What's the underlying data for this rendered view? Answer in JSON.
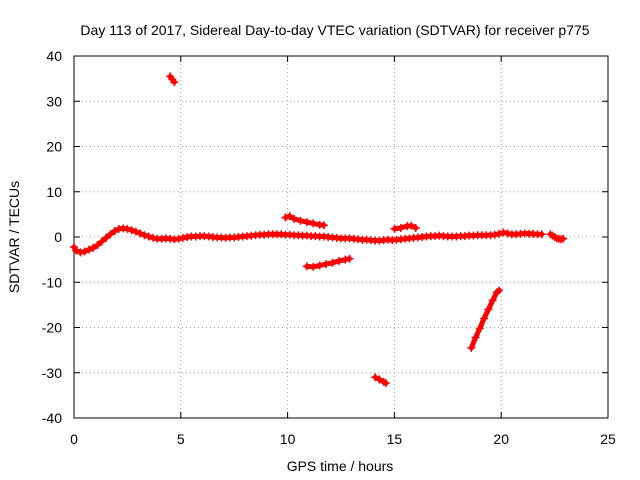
{
  "chart_data": {
    "type": "scatter",
    "title": "Day 113 of 2017, Sidereal Day-to-day VTEC variation (SDTVAR) for receiver p775",
    "xlabel": "GPS time / hours",
    "ylabel": "SDTVAR / TECUs",
    "xlim": [
      0,
      25
    ],
    "ylim": [
      -40,
      40
    ],
    "xticks": [
      0,
      5,
      10,
      15,
      20,
      25
    ],
    "yticks": [
      -40,
      -30,
      -20,
      -10,
      0,
      10,
      20,
      30,
      40
    ],
    "grid": true,
    "legend": "none",
    "series": [
      {
        "name": "SDTVAR",
        "color": "#ff0000",
        "marker": "plus",
        "segments": [
          [
            [
              0.0,
              -2.2
            ],
            [
              0.1,
              -3.0
            ],
            [
              0.3,
              -3.4
            ],
            [
              0.5,
              -3.2
            ],
            [
              0.7,
              -2.8
            ],
            [
              0.9,
              -2.4
            ],
            [
              1.1,
              -1.8
            ],
            [
              1.3,
              -1.0
            ],
            [
              1.5,
              -0.2
            ],
            [
              1.7,
              0.6
            ],
            [
              1.9,
              1.3
            ],
            [
              2.1,
              1.8
            ],
            [
              2.3,
              1.9
            ],
            [
              2.5,
              1.8
            ],
            [
              2.7,
              1.5
            ],
            [
              2.9,
              1.2
            ],
            [
              3.1,
              0.8
            ],
            [
              3.3,
              0.4
            ],
            [
              3.5,
              0.1
            ],
            [
              3.7,
              -0.2
            ],
            [
              3.9,
              -0.4
            ],
            [
              4.1,
              -0.4
            ],
            [
              4.3,
              -0.3
            ],
            [
              4.5,
              -0.4
            ],
            [
              4.7,
              -0.5
            ],
            [
              4.9,
              -0.4
            ],
            [
              5.1,
              -0.2
            ],
            [
              5.3,
              0.0
            ],
            [
              5.5,
              0.1
            ],
            [
              5.7,
              0.1
            ],
            [
              5.9,
              0.2
            ],
            [
              6.1,
              0.2
            ],
            [
              6.3,
              0.1
            ],
            [
              6.5,
              0.0
            ],
            [
              6.7,
              -0.1
            ],
            [
              6.9,
              -0.1
            ],
            [
              7.1,
              -0.2
            ],
            [
              7.3,
              -0.1
            ],
            [
              7.5,
              -0.1
            ],
            [
              7.7,
              0.0
            ],
            [
              7.9,
              0.1
            ],
            [
              8.1,
              0.2
            ],
            [
              8.3,
              0.3
            ],
            [
              8.5,
              0.4
            ],
            [
              8.7,
              0.5
            ],
            [
              8.9,
              0.5
            ],
            [
              9.1,
              0.6
            ],
            [
              9.3,
              0.6
            ],
            [
              9.5,
              0.6
            ],
            [
              9.7,
              0.6
            ],
            [
              9.9,
              0.5
            ],
            [
              10.1,
              0.5
            ],
            [
              10.3,
              0.4
            ],
            [
              10.5,
              0.4
            ],
            [
              10.7,
              0.3
            ],
            [
              10.9,
              0.3
            ],
            [
              11.1,
              0.2
            ],
            [
              11.3,
              0.2
            ],
            [
              11.5,
              0.1
            ],
            [
              11.7,
              0.1
            ],
            [
              11.9,
              0.0
            ],
            [
              12.1,
              -0.1
            ],
            [
              12.3,
              -0.2
            ],
            [
              12.5,
              -0.3
            ],
            [
              12.7,
              -0.3
            ],
            [
              12.9,
              -0.3
            ],
            [
              13.1,
              -0.4
            ],
            [
              13.3,
              -0.5
            ],
            [
              13.5,
              -0.6
            ],
            [
              13.7,
              -0.6
            ],
            [
              13.9,
              -0.7
            ],
            [
              14.1,
              -0.8
            ],
            [
              14.3,
              -0.8
            ],
            [
              14.5,
              -0.7
            ],
            [
              14.7,
              -0.6
            ],
            [
              14.9,
              -0.7
            ],
            [
              15.1,
              -0.6
            ],
            [
              15.3,
              -0.5
            ],
            [
              15.5,
              -0.4
            ],
            [
              15.7,
              -0.3
            ],
            [
              15.9,
              -0.2
            ],
            [
              16.1,
              -0.1
            ],
            [
              16.3,
              0.0
            ],
            [
              16.5,
              0.1
            ],
            [
              16.7,
              0.2
            ],
            [
              16.9,
              0.2
            ],
            [
              17.1,
              0.3
            ],
            [
              17.3,
              0.2
            ],
            [
              17.5,
              0.1
            ],
            [
              17.7,
              0.1
            ],
            [
              17.9,
              0.1
            ],
            [
              18.1,
              0.2
            ],
            [
              18.3,
              0.2
            ],
            [
              18.5,
              0.3
            ],
            [
              18.7,
              0.3
            ],
            [
              18.9,
              0.4
            ],
            [
              19.1,
              0.4
            ],
            [
              19.3,
              0.4
            ],
            [
              19.5,
              0.4
            ],
            [
              19.7,
              0.5
            ],
            [
              19.9,
              0.7
            ],
            [
              20.1,
              1.0
            ],
            [
              20.3,
              0.8
            ],
            [
              20.5,
              0.6
            ],
            [
              20.7,
              0.6
            ],
            [
              20.9,
              0.7
            ],
            [
              21.1,
              0.8
            ],
            [
              21.3,
              0.7
            ],
            [
              21.5,
              0.7
            ],
            [
              21.7,
              0.6
            ],
            [
              21.9,
              0.6
            ]
          ],
          [
            [
              4.5,
              35.5
            ],
            [
              4.6,
              34.8
            ],
            [
              4.7,
              34.2
            ]
          ],
          [
            [
              9.9,
              4.3
            ],
            [
              10.1,
              4.6
            ],
            [
              10.3,
              4.0
            ],
            [
              10.6,
              3.6
            ],
            [
              10.9,
              3.3
            ],
            [
              11.2,
              3.0
            ],
            [
              11.5,
              2.7
            ],
            [
              11.7,
              2.6
            ]
          ],
          [
            [
              10.9,
              -6.5
            ],
            [
              11.2,
              -6.6
            ],
            [
              11.5,
              -6.3
            ],
            [
              11.8,
              -6.0
            ],
            [
              12.1,
              -5.7
            ],
            [
              12.4,
              -5.3
            ],
            [
              12.7,
              -5.0
            ],
            [
              12.9,
              -4.8
            ]
          ],
          [
            [
              14.1,
              -31.0
            ],
            [
              14.3,
              -31.5
            ],
            [
              14.5,
              -32.0
            ],
            [
              14.6,
              -32.3
            ]
          ],
          [
            [
              15.0,
              1.8
            ],
            [
              15.3,
              2.0
            ],
            [
              15.6,
              2.4
            ],
            [
              15.8,
              2.5
            ],
            [
              16.0,
              2.0
            ]
          ],
          [
            [
              18.6,
              -24.5
            ],
            [
              18.8,
              -22.2
            ],
            [
              19.0,
              -20.2
            ],
            [
              19.2,
              -18.0
            ],
            [
              19.4,
              -16.0
            ],
            [
              19.6,
              -14.0
            ],
            [
              19.8,
              -12.2
            ],
            [
              19.9,
              -11.8
            ]
          ],
          [
            [
              22.3,
              0.6
            ],
            [
              22.4,
              0.3
            ],
            [
              22.5,
              0.0
            ],
            [
              22.6,
              -0.3
            ],
            [
              22.7,
              -0.4
            ],
            [
              22.8,
              -0.5
            ],
            [
              22.9,
              -0.4
            ]
          ]
        ]
      }
    ]
  }
}
